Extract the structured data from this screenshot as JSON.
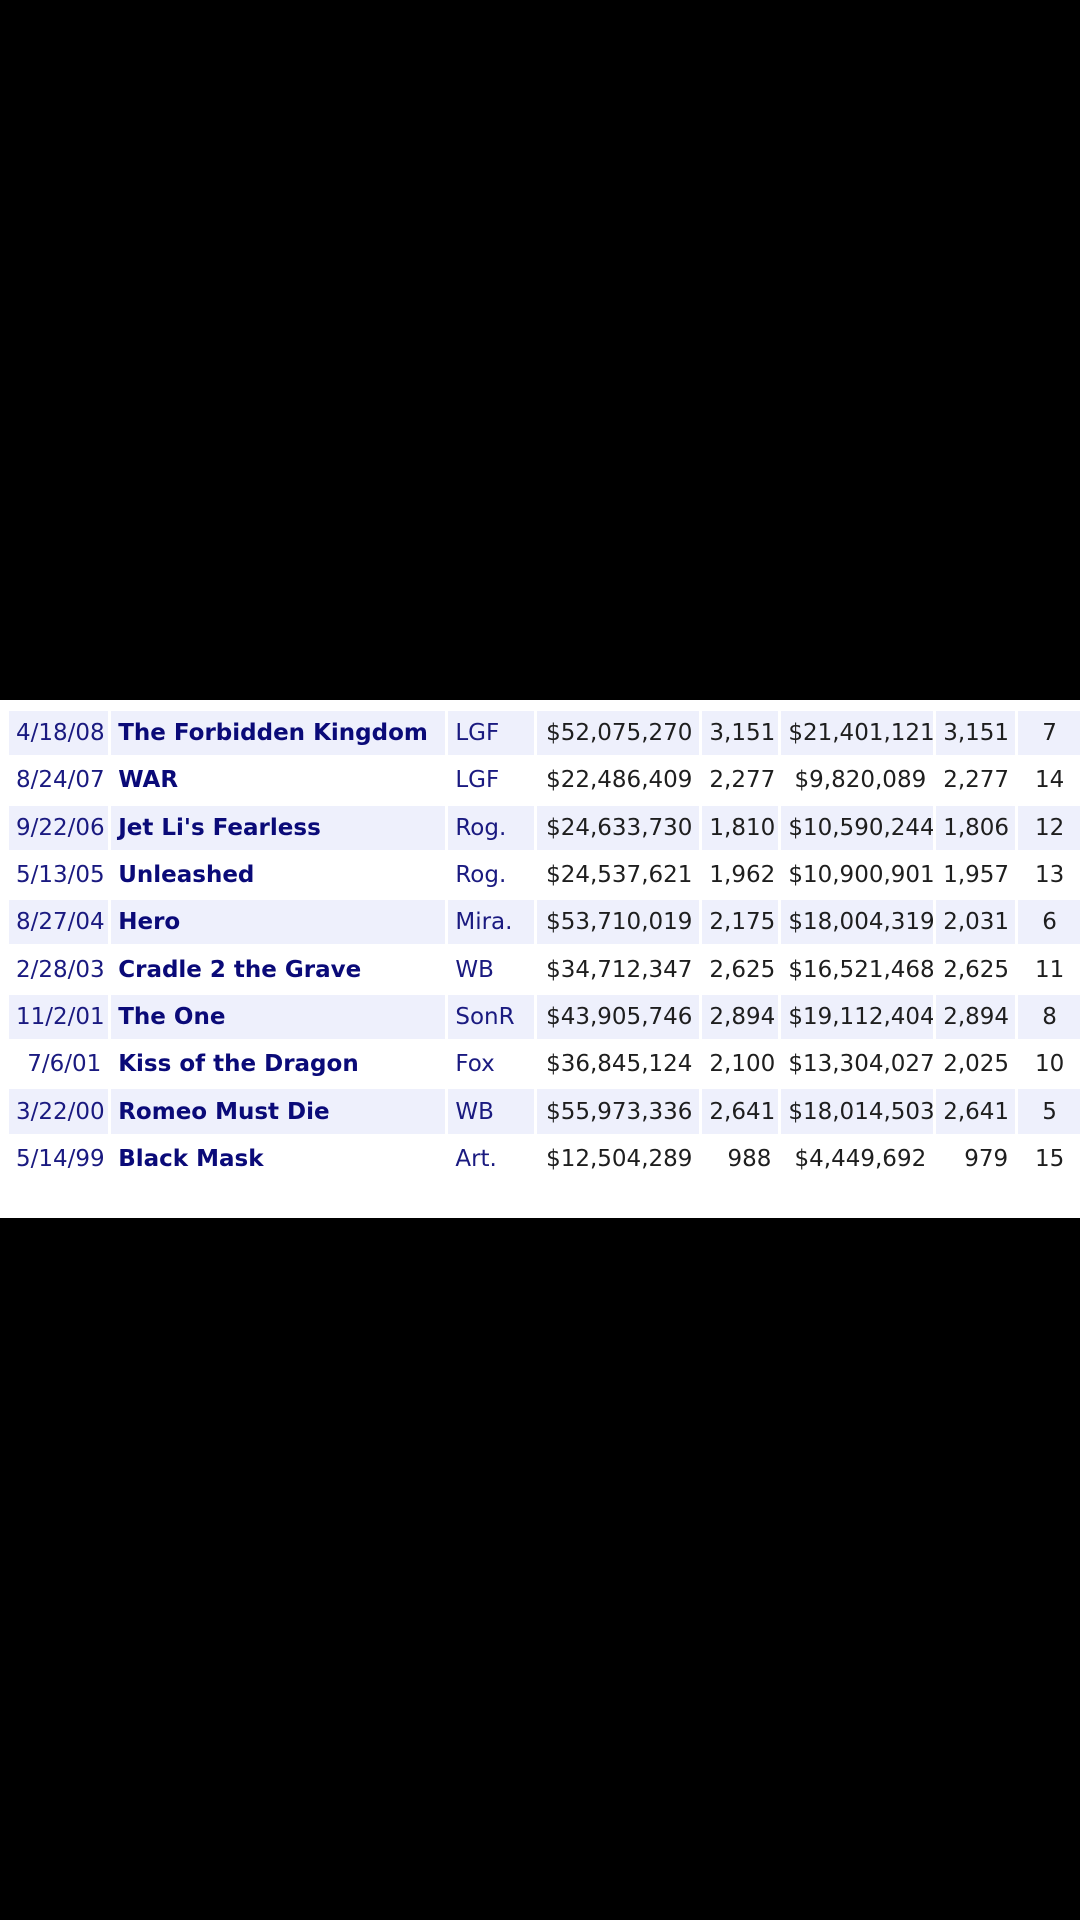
{
  "colors": {
    "background": "#000000",
    "table_background": "#ffffff",
    "row_alt": "#eef0fc",
    "title_link": "#0a0a78",
    "date_text": "#1a1a80",
    "number_text": "#1e1e1e"
  },
  "rows": [
    {
      "date": "4/18/08",
      "title": "The Forbidden Kingdom",
      "distributor": "LGF",
      "total_gross": "$52,075,270",
      "theaters": "3,151",
      "opening": "$21,401,121",
      "opening_theaters": "3,151",
      "rank": "7"
    },
    {
      "date": "8/24/07",
      "title": "WAR",
      "distributor": "LGF",
      "total_gross": "$22,486,409",
      "theaters": "2,277",
      "opening": "$9,820,089",
      "opening_theaters": "2,277",
      "rank": "14"
    },
    {
      "date": "9/22/06",
      "title": "Jet Li's Fearless",
      "distributor": "Rog.",
      "total_gross": "$24,633,730",
      "theaters": "1,810",
      "opening": "$10,590,244",
      "opening_theaters": "1,806",
      "rank": "12"
    },
    {
      "date": "5/13/05",
      "title": "Unleashed",
      "distributor": "Rog.",
      "total_gross": "$24,537,621",
      "theaters": "1,962",
      "opening": "$10,900,901",
      "opening_theaters": "1,957",
      "rank": "13"
    },
    {
      "date": "8/27/04",
      "title": "Hero",
      "distributor": "Mira.",
      "total_gross": "$53,710,019",
      "theaters": "2,175",
      "opening": "$18,004,319",
      "opening_theaters": "2,031",
      "rank": "6"
    },
    {
      "date": "2/28/03",
      "title": "Cradle 2 the Grave",
      "distributor": "WB",
      "total_gross": "$34,712,347",
      "theaters": "2,625",
      "opening": "$16,521,468",
      "opening_theaters": "2,625",
      "rank": "11"
    },
    {
      "date": "11/2/01",
      "title": "The One",
      "distributor": "SonR",
      "total_gross": "$43,905,746",
      "theaters": "2,894",
      "opening": "$19,112,404",
      "opening_theaters": "2,894",
      "rank": "8"
    },
    {
      "date": "7/6/01",
      "title": "Kiss of the Dragon",
      "distributor": "Fox",
      "total_gross": "$36,845,124",
      "theaters": "2,100",
      "opening": "$13,304,027",
      "opening_theaters": "2,025",
      "rank": "10"
    },
    {
      "date": "3/22/00",
      "title": "Romeo Must Die",
      "distributor": "WB",
      "total_gross": "$55,973,336",
      "theaters": "2,641",
      "opening": "$18,014,503",
      "opening_theaters": "2,641",
      "rank": "5"
    },
    {
      "date": "5/14/99",
      "title": "Black Mask",
      "distributor": "Art.",
      "total_gross": "$12,504,289",
      "theaters": "988",
      "opening": "$4,449,692",
      "opening_theaters": "979",
      "rank": "15"
    }
  ]
}
